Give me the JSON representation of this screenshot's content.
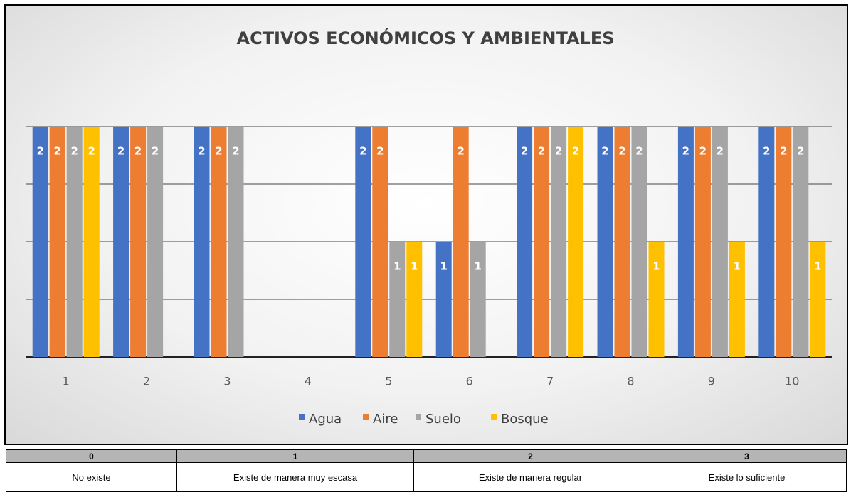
{
  "chart_data": {
    "type": "bar",
    "title": "ACTIVOS ECONÓMICOS Y AMBIENTALES",
    "categories": [
      "1",
      "2",
      "3",
      "4",
      "5",
      "6",
      "7",
      "8",
      "9",
      "10"
    ],
    "series": [
      {
        "name": "Agua",
        "color": "#4472c4",
        "values": [
          2,
          2,
          2,
          null,
          2,
          1,
          2,
          2,
          2,
          2
        ]
      },
      {
        "name": "Aire",
        "color": "#ed7d31",
        "values": [
          2,
          2,
          2,
          null,
          2,
          2,
          2,
          2,
          2,
          2
        ]
      },
      {
        "name": "Suelo",
        "color": "#a5a5a5",
        "values": [
          2,
          2,
          2,
          null,
          1,
          1,
          2,
          2,
          2,
          2
        ]
      },
      {
        "name": "Bosque",
        "color": "#ffc000",
        "values": [
          2,
          null,
          null,
          null,
          1,
          null,
          2,
          1,
          1,
          1
        ]
      }
    ],
    "ylim": [
      0,
      2
    ],
    "yticks": [
      0,
      0.5,
      1,
      1.5,
      2
    ],
    "grid": true,
    "legend": "bottom"
  },
  "table": {
    "header": [
      "0",
      "1",
      "2",
      "3"
    ],
    "rows": [
      [
        "No existe",
        "Existe de manera muy escasa",
        "Existe de manera regular",
        "Existe lo suficiente"
      ]
    ]
  }
}
